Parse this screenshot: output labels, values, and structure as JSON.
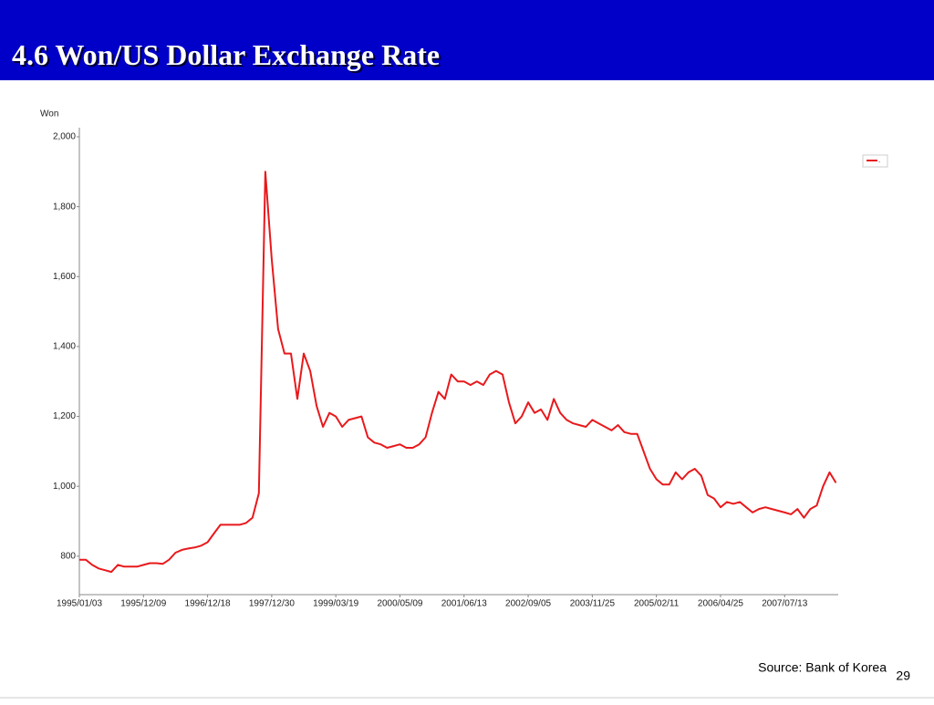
{
  "chart_data": {
    "type": "line",
    "title": "4.6  Won/US Dollar Exchange Rate",
    "y_label": "Won",
    "source": "Source: Bank of Korea",
    "page_number": "29",
    "categories": [
      "1995/01/03",
      null,
      null,
      null,
      null,
      null,
      null,
      null,
      null,
      null,
      "1995/12/09",
      null,
      null,
      null,
      null,
      null,
      null,
      null,
      null,
      null,
      "1996/12/18",
      null,
      null,
      null,
      null,
      null,
      null,
      null,
      null,
      null,
      "1997/12/30",
      null,
      null,
      null,
      null,
      null,
      null,
      null,
      null,
      null,
      "1999/03/19",
      null,
      null,
      null,
      null,
      null,
      null,
      null,
      null,
      null,
      "2000/05/09",
      null,
      null,
      null,
      null,
      null,
      null,
      null,
      null,
      null,
      "2001/06/13",
      null,
      null,
      null,
      null,
      null,
      null,
      null,
      null,
      null,
      "2002/09/05",
      null,
      null,
      null,
      null,
      null,
      null,
      null,
      null,
      null,
      "2003/11/25",
      null,
      null,
      null,
      null,
      null,
      null,
      null,
      null,
      null,
      "2005/02/11",
      null,
      null,
      null,
      null,
      null,
      null,
      null,
      null,
      null,
      "2006/04/25",
      null,
      null,
      null,
      null,
      null,
      null,
      null,
      null,
      null,
      "2007/07/13",
      null,
      null,
      null,
      null,
      null,
      null,
      null,
      null
    ],
    "series": [
      {
        "name": ".",
        "color": "#e8191c",
        "values": [
          790,
          790,
          775,
          765,
          760,
          755,
          775,
          770,
          770,
          770,
          775,
          780,
          780,
          778,
          790,
          810,
          818,
          822,
          825,
          830,
          840,
          865,
          890,
          890,
          890,
          890,
          895,
          910,
          980,
          1900,
          1650,
          1450,
          1380,
          1380,
          1250,
          1380,
          1330,
          1230,
          1170,
          1210,
          1200,
          1170,
          1190,
          1195,
          1200,
          1140,
          1125,
          1120,
          1110,
          1115,
          1120,
          1110,
          1110,
          1120,
          1140,
          1210,
          1270,
          1250,
          1320,
          1300,
          1300,
          1290,
          1300,
          1290,
          1320,
          1330,
          1320,
          1240,
          1180,
          1200,
          1240,
          1210,
          1220,
          1190,
          1250,
          1210,
          1190,
          1180,
          1175,
          1170,
          1190,
          1180,
          1170,
          1160,
          1175,
          1155,
          1150,
          1150,
          1100,
          1050,
          1020,
          1005,
          1005,
          1040,
          1020,
          1040,
          1050,
          1030,
          975,
          965,
          940,
          955,
          950,
          955,
          940,
          925,
          935,
          940,
          935,
          930,
          925,
          920,
          935,
          910,
          935,
          945,
          1000,
          1040,
          1010
        ]
      }
    ],
    "ylim": [
      690,
      2026
    ],
    "yticks": [
      800,
      {
        "value": 1000,
        "label": "1,000"
      },
      {
        "value": 1200,
        "label": "1,200"
      },
      {
        "value": 1400,
        "label": "1,400"
      },
      {
        "value": 1600,
        "label": "1,600"
      },
      {
        "value": 1800,
        "label": "1,800"
      },
      {
        "value": 2000,
        "label": "2,000"
      }
    ],
    "legend": "top-right"
  }
}
